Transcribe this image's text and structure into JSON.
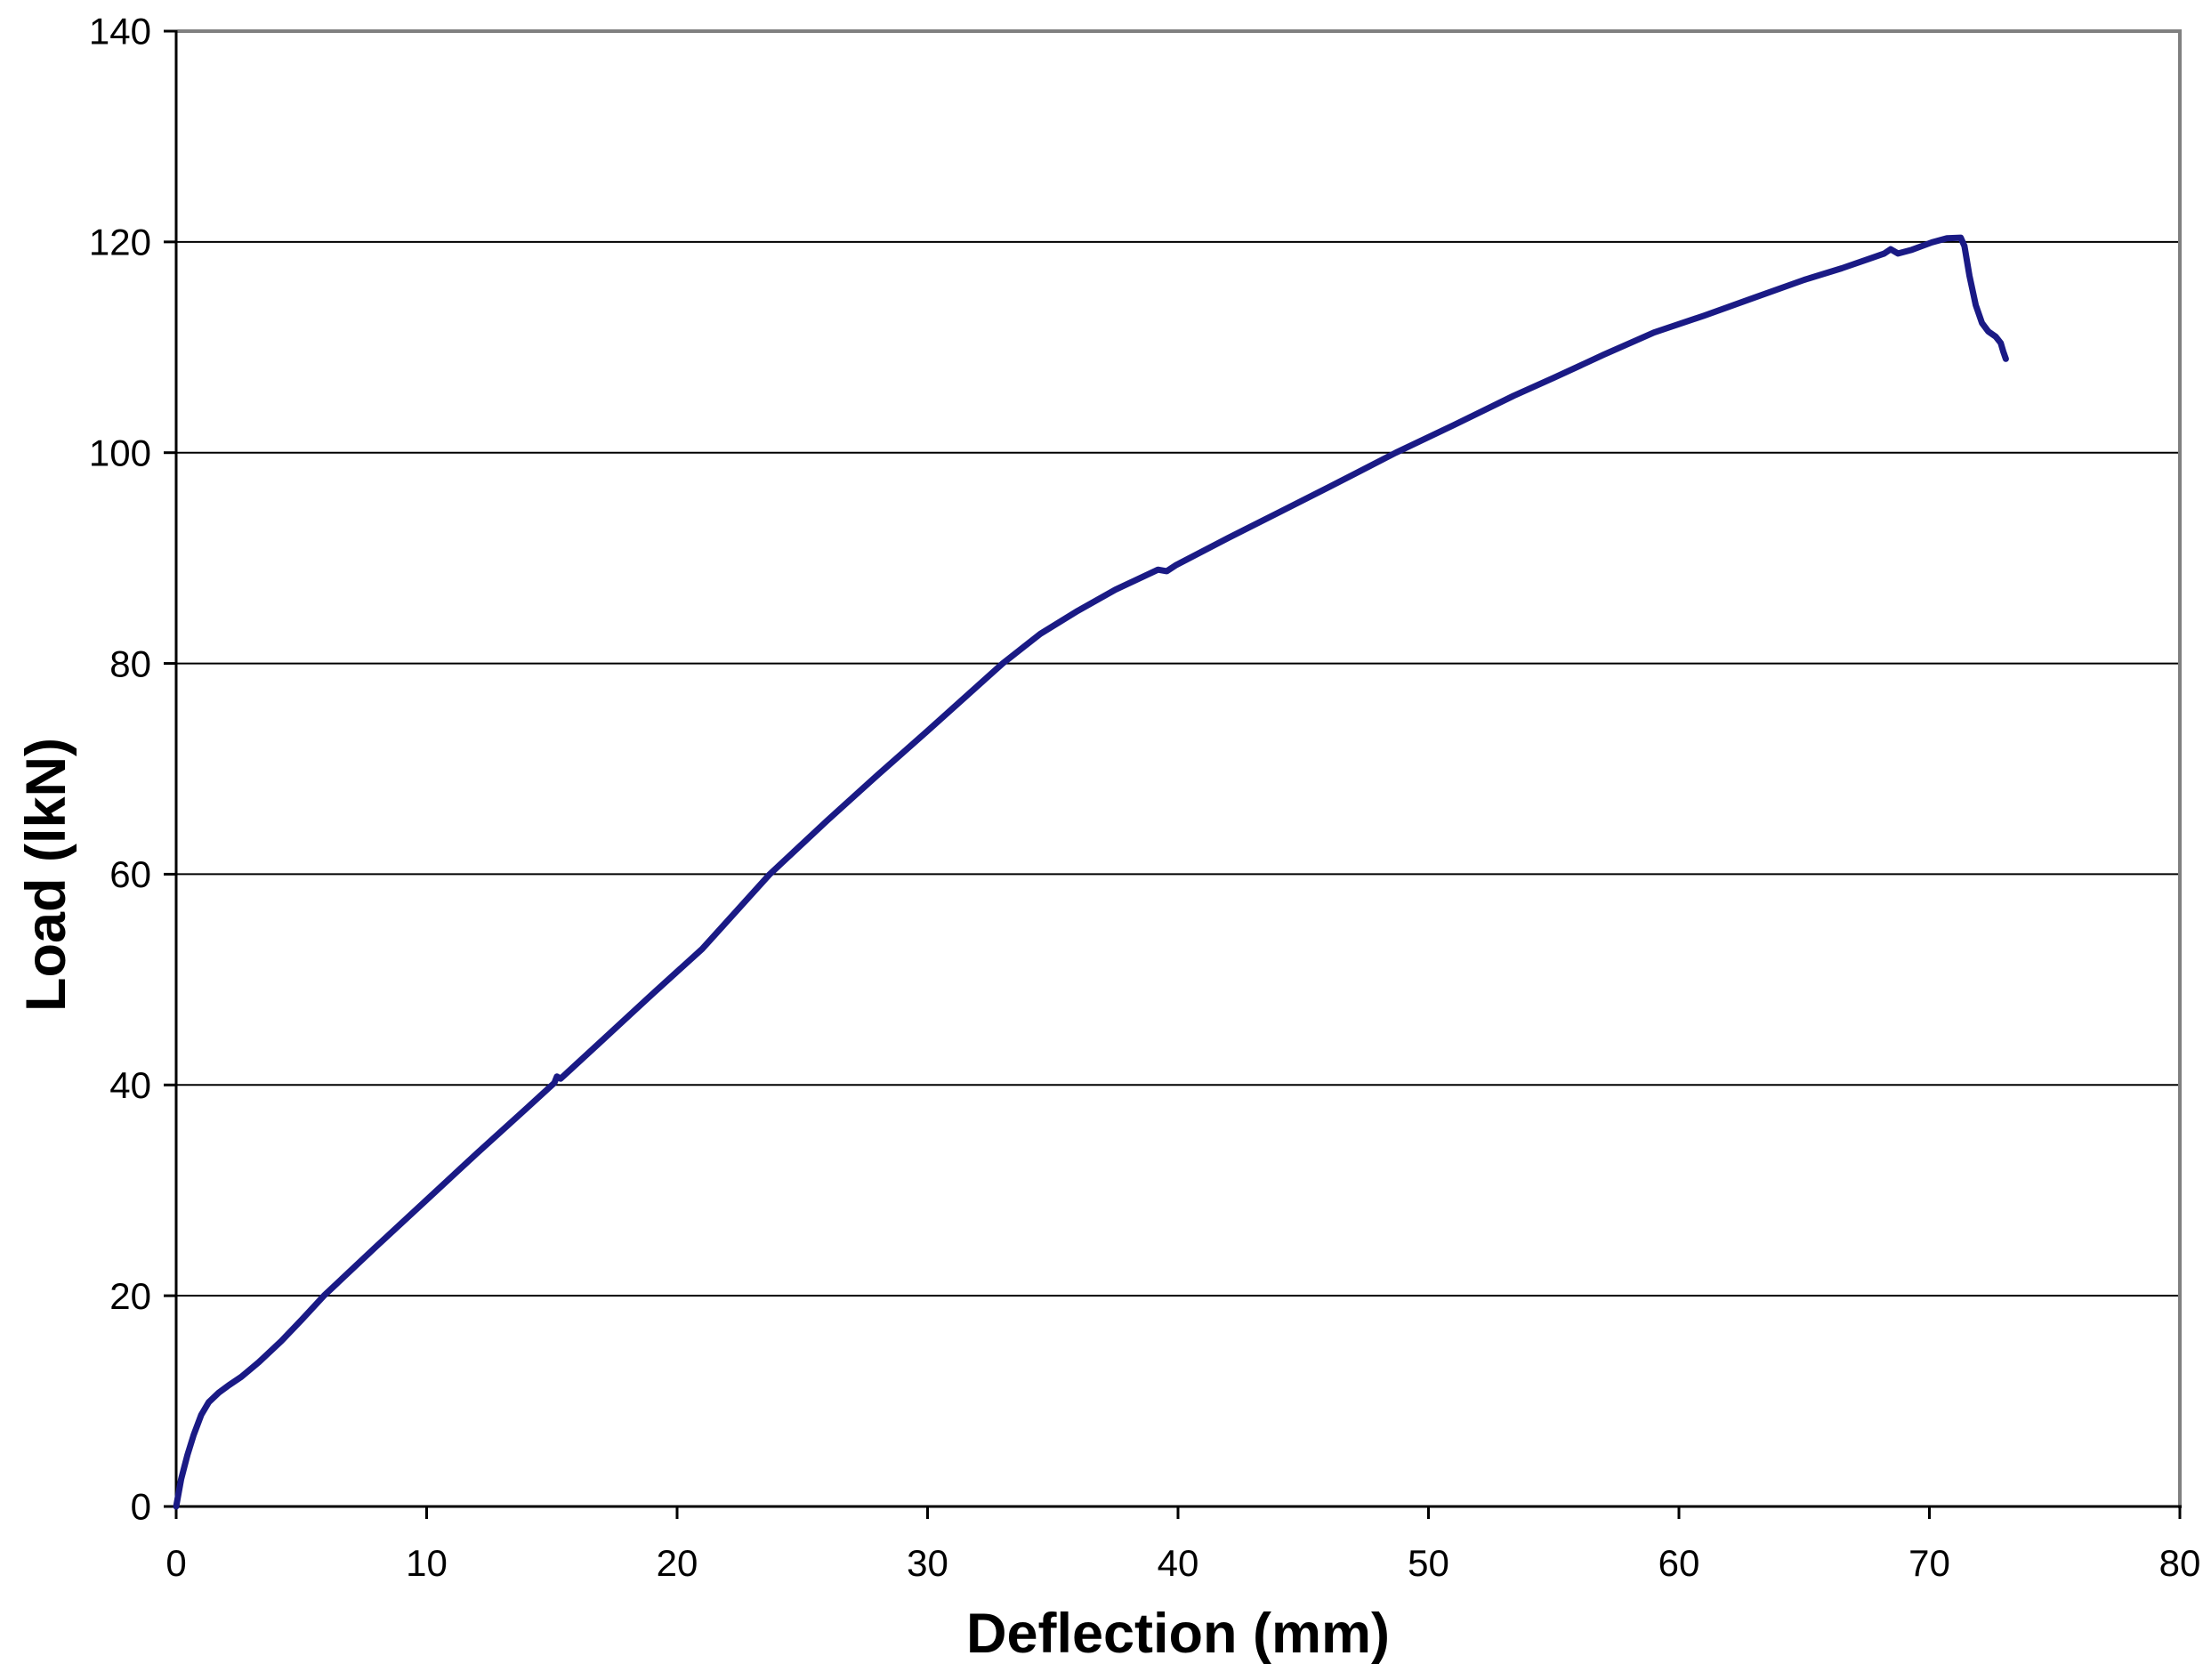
{
  "chart_data": {
    "type": "line",
    "title": "",
    "xlabel": "Deflection (mm)",
    "ylabel": "Load (lkN)",
    "xlim": [
      0,
      80
    ],
    "ylim": [
      0,
      140
    ],
    "xticks": [
      0,
      10,
      20,
      30,
      40,
      50,
      60,
      70,
      80
    ],
    "yticks": [
      0,
      20,
      40,
      60,
      80,
      100,
      120,
      140
    ],
    "grid": "horizontal-only",
    "legend": "none",
    "series": [
      {
        "name": "load-deflection-curve",
        "color": "#1a1a85",
        "stroke_width": 7,
        "points": [
          [
            0,
            0
          ],
          [
            0.2,
            2.6
          ],
          [
            0.45,
            4.9
          ],
          [
            0.7,
            6.8
          ],
          [
            1.0,
            8.7
          ],
          [
            1.3,
            9.9
          ],
          [
            1.7,
            10.8
          ],
          [
            2.1,
            11.5
          ],
          [
            2.6,
            12.3
          ],
          [
            3.3,
            13.7
          ],
          [
            4.2,
            15.7
          ],
          [
            5.0,
            17.7
          ],
          [
            5.9,
            20.0
          ],
          [
            8.0,
            24.7
          ],
          [
            10.0,
            29.1
          ],
          [
            12.0,
            33.5
          ],
          [
            14.0,
            37.8
          ],
          [
            15.1,
            40.2
          ],
          [
            15.2,
            40.8
          ],
          [
            15.35,
            40.6
          ],
          [
            17.0,
            44.2
          ],
          [
            19.0,
            48.6
          ],
          [
            21.0,
            52.9
          ],
          [
            23.7,
            60.0
          ],
          [
            26.0,
            65.1
          ],
          [
            28.0,
            69.4
          ],
          [
            30.0,
            73.6
          ],
          [
            31.5,
            76.8
          ],
          [
            33.0,
            80.0
          ],
          [
            34.5,
            82.8
          ],
          [
            36.0,
            85.0
          ],
          [
            37.5,
            87.0
          ],
          [
            39.2,
            88.9
          ],
          [
            39.55,
            88.75
          ],
          [
            39.9,
            89.3
          ],
          [
            42.0,
            91.9
          ],
          [
            44.0,
            94.3
          ],
          [
            46.0,
            96.7
          ],
          [
            48.7,
            100.0
          ],
          [
            51.0,
            102.6
          ],
          [
            53.4,
            105.4
          ],
          [
            55.0,
            107.1
          ],
          [
            57.0,
            109.3
          ],
          [
            59.0,
            111.4
          ],
          [
            61.0,
            113.0
          ],
          [
            63.0,
            114.7
          ],
          [
            65.0,
            116.4
          ],
          [
            66.5,
            117.5
          ],
          [
            67.6,
            118.4
          ],
          [
            68.2,
            118.9
          ],
          [
            68.45,
            119.3
          ],
          [
            68.75,
            118.9
          ],
          [
            69.3,
            119.25
          ],
          [
            70.1,
            119.95
          ],
          [
            70.7,
            120.35
          ],
          [
            71.25,
            120.4
          ],
          [
            71.4,
            119.6
          ],
          [
            71.6,
            116.8
          ],
          [
            71.85,
            114.0
          ],
          [
            72.1,
            112.3
          ],
          [
            72.35,
            111.5
          ],
          [
            72.65,
            111.0
          ],
          [
            72.85,
            110.4
          ],
          [
            72.95,
            109.6
          ],
          [
            73.05,
            108.9
          ]
        ]
      }
    ]
  },
  "colors": {
    "background": "#ffffff",
    "gridline": "#000000",
    "axis": "#000000",
    "plot_border": "#808080",
    "text": "#000000",
    "line": "#1a1a85"
  }
}
